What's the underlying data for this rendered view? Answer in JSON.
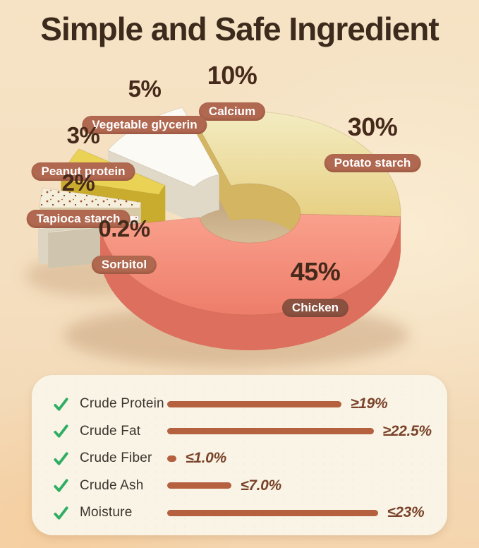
{
  "title": "Simple and Safe Ingredient",
  "colors": {
    "badge": "#b06850",
    "badge_dark": "#8a5140",
    "bar": "#b5603e",
    "check": "#2fae63",
    "value_text": "#7a4229",
    "title_text": "#3c2a1d",
    "percent_text": "#45291a"
  },
  "chart_data": {
    "type": "pie",
    "title": "Simple and Safe Ingredient",
    "unit": "percent",
    "legend_position": "around",
    "start_angle_deg": 188,
    "slices": [
      {
        "label": "Chicken",
        "value": 45,
        "value_text": "45%",
        "color": "#f4907e",
        "side": "#dd6f5e",
        "explode": 0
      },
      {
        "label": "Potato starch",
        "value": 30,
        "value_text": "30%",
        "color": "#ecd98d",
        "side": "#d3b562",
        "explode": 0
      },
      {
        "label": "Calcium",
        "value": 10,
        "value_text": "10%",
        "color": "#fbfaf5",
        "side": "#e0d9c8",
        "explode": 26
      },
      {
        "label": "Vegetable glycerin",
        "value": 5,
        "value_text": "5%",
        "color": "#e9d254",
        "side": "#c9ac2e",
        "explode": 62
      },
      {
        "label": "Peanut protein",
        "value": 3,
        "value_text": "3%",
        "color": "#f4eeda",
        "side": "#d8caa7",
        "explode": 84,
        "speckle": "speckBrown"
      },
      {
        "label": "Tapioca starch",
        "value": 2,
        "value_text": "2%",
        "color": "#fbf9f2",
        "side": "#ddd5c2",
        "explode": 86,
        "speckle": "speckRed"
      },
      {
        "label": "Sorbitol",
        "value": 0.2,
        "value_text": "0.2%",
        "color": "#efe9d9",
        "side": "#cfc5ae",
        "explode": 74
      }
    ]
  },
  "nutrition_panel": {
    "rows": [
      {
        "label": "Crude Protein",
        "value_text": "≥19%",
        "bar_value": 19
      },
      {
        "label": "Crude Fat",
        "value_text": "≥22.5%",
        "bar_value": 22.5
      },
      {
        "label": "Crude Fiber",
        "value_text": "≤1.0%",
        "bar_value": 1.0
      },
      {
        "label": "Crude Ash",
        "value_text": "≤7.0%",
        "bar_value": 7.0
      },
      {
        "label": "Moisture",
        "value_text": "≤23%",
        "bar_value": 23
      }
    ]
  }
}
